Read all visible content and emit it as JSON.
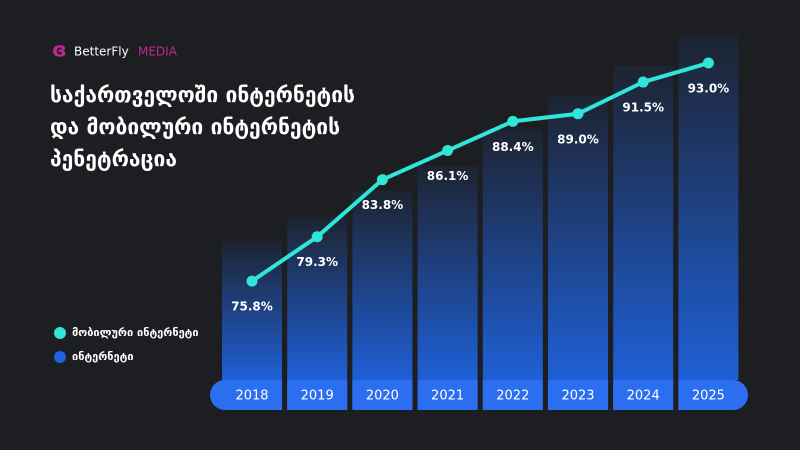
{
  "logo": {
    "name": "BetterFly",
    "suffix": "MEDIA"
  },
  "chart_data": {
    "type": "bar-line",
    "title": [
      "საქართველოში ინტერნეტის",
      "და მობილური ინტერნეტის",
      "პენეტრაცია"
    ],
    "categories": [
      "2018",
      "2019",
      "2020",
      "2021",
      "2022",
      "2023",
      "2024",
      "2025"
    ],
    "ylim": [
      68,
      96
    ],
    "series": [
      {
        "name": "მობილური ინტერნეტი",
        "type": "line",
        "color": "#2fe6d8",
        "values": [
          75.8,
          79.3,
          83.8,
          86.1,
          88.4,
          89.0,
          91.5,
          93.0
        ],
        "value_labels": [
          "75.8%",
          "79.3%",
          "83.8%",
          "86.1%",
          "88.4%",
          "89.0%",
          "91.5%",
          "93.0%"
        ]
      },
      {
        "name": "ინტერნეტი",
        "type": "bar",
        "color": "#1f63e0",
        "values": [
          78.9,
          80.9,
          82.9,
          84.9,
          87.8,
          90.4,
          92.8,
          95.1
        ]
      }
    ]
  }
}
